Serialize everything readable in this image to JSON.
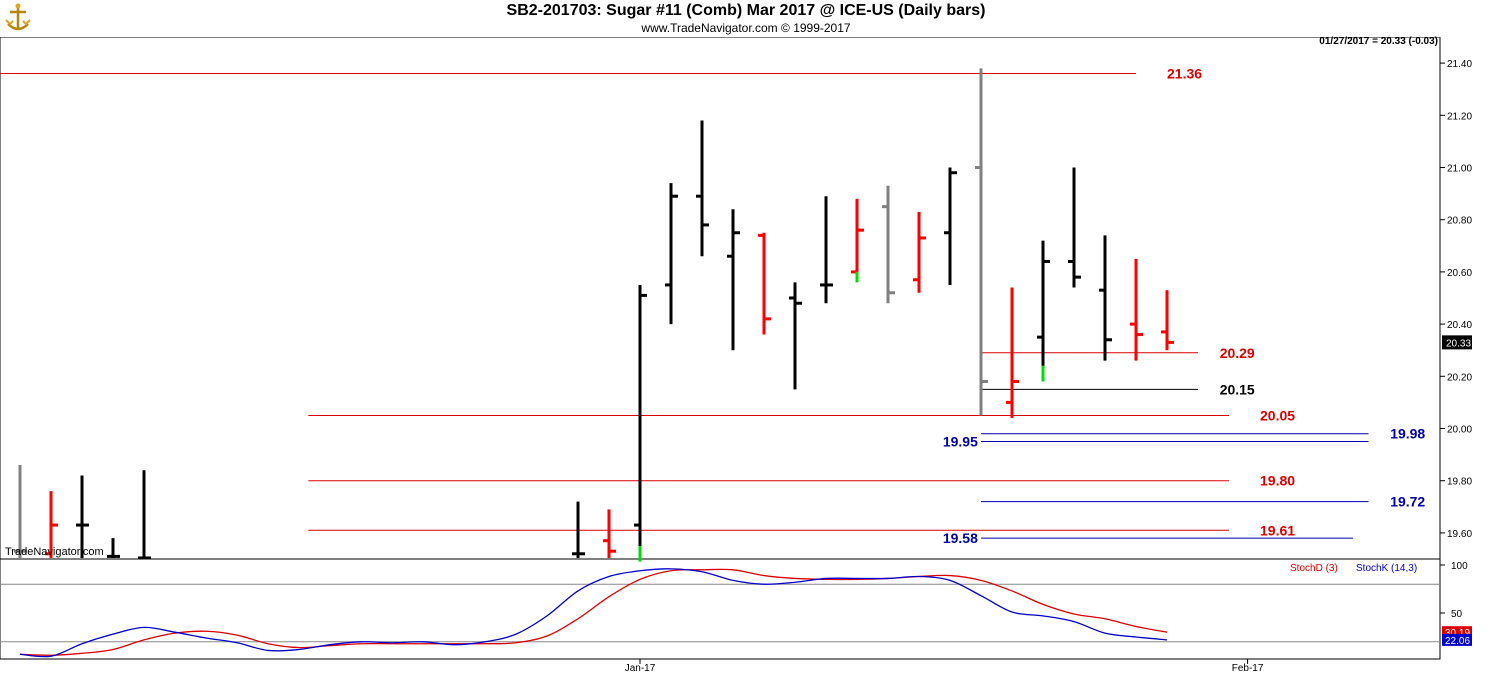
{
  "header": {
    "title": "SB2-201703:  Sugar #11 (Comb) Mar 2017 @ ICE-US  (Daily bars)",
    "subtitle": "www.TradeNavigator.com © 1999-2017"
  },
  "last_price_info": "01/27/2017 = 20.33 (-0.03)",
  "watermark": "TradeNavigator.com",
  "colors": {
    "up": "#000000",
    "down": "#ff0000",
    "neutral": "#808080",
    "signal": "#00dd00",
    "level_red": "#dd0000",
    "level_blue": "#0000aa",
    "stoch_d": "#dd0000",
    "stoch_k": "#0000cc"
  },
  "chart_data": [
    {
      "type": "bar",
      "subtype": "ohlc",
      "ylim": [
        19.5,
        21.5
      ],
      "y_ticks": [
        "21.40",
        "21.20",
        "21.00",
        "20.80",
        "20.60",
        "20.40",
        "20.20",
        "20.00",
        "19.80",
        "19.60"
      ],
      "x_ticks": [
        "Jan-17",
        "Feb-17"
      ],
      "last_price_label": "20.33",
      "bars": [
        {
          "i": 0,
          "o": 19.53,
          "h": 19.86,
          "l": 19.5,
          "c": 19.53,
          "color": "neutral"
        },
        {
          "i": 1,
          "o": 19.52,
          "h": 19.76,
          "l": 19.5,
          "c": 19.63,
          "color": "down"
        },
        {
          "i": 2,
          "o": 19.63,
          "h": 19.82,
          "l": 19.5,
          "c": 19.63,
          "color": "up"
        },
        {
          "i": 3,
          "o": 19.51,
          "h": 19.58,
          "l": 19.5,
          "c": 19.51,
          "color": "up"
        },
        {
          "i": 4,
          "o": 19.5,
          "h": 19.84,
          "l": 19.5,
          "c": 19.5,
          "color": "up"
        },
        {
          "i": 18,
          "o": 19.52,
          "h": 19.72,
          "l": 19.5,
          "c": 19.52,
          "color": "up"
        },
        {
          "i": 19,
          "o": 19.57,
          "h": 19.69,
          "l": 19.5,
          "c": 19.53,
          "color": "down"
        },
        {
          "i": 20,
          "o": 19.63,
          "h": 20.55,
          "l": 19.55,
          "c": 20.51,
          "color": "up",
          "signal_low": 19.49
        },
        {
          "i": 21,
          "o": 20.55,
          "h": 20.94,
          "l": 20.4,
          "c": 20.89,
          "color": "up"
        },
        {
          "i": 22,
          "o": 20.89,
          "h": 21.18,
          "l": 20.66,
          "c": 20.78,
          "color": "up"
        },
        {
          "i": 23,
          "o": 20.66,
          "h": 20.84,
          "l": 20.3,
          "c": 20.75,
          "color": "up"
        },
        {
          "i": 24,
          "o": 20.74,
          "h": 20.75,
          "l": 20.36,
          "c": 20.42,
          "color": "down"
        },
        {
          "i": 25,
          "o": 20.5,
          "h": 20.56,
          "l": 20.15,
          "c": 20.48,
          "color": "up"
        },
        {
          "i": 26,
          "o": 20.55,
          "h": 20.89,
          "l": 20.48,
          "c": 20.55,
          "color": "up"
        },
        {
          "i": 27,
          "o": 20.6,
          "h": 20.88,
          "l": 20.6,
          "c": 20.76,
          "color": "down",
          "signal_low": 20.56
        },
        {
          "i": 28,
          "o": 20.85,
          "h": 20.93,
          "l": 20.48,
          "c": 20.52,
          "color": "neutral"
        },
        {
          "i": 29,
          "o": 20.57,
          "h": 20.83,
          "l": 20.52,
          "c": 20.73,
          "color": "down"
        },
        {
          "i": 30,
          "o": 20.75,
          "h": 21.0,
          "l": 20.55,
          "c": 20.98,
          "color": "up"
        },
        {
          "i": 31,
          "o": 21.0,
          "h": 21.38,
          "l": 20.05,
          "c": 20.18,
          "color": "neutral"
        },
        {
          "i": 32,
          "o": 20.1,
          "h": 20.54,
          "l": 20.04,
          "c": 20.18,
          "color": "down"
        },
        {
          "i": 33,
          "o": 20.35,
          "h": 20.72,
          "l": 20.24,
          "c": 20.64,
          "color": "up",
          "signal_low": 20.18
        },
        {
          "i": 34,
          "o": 20.64,
          "h": 21.0,
          "l": 20.54,
          "c": 20.58,
          "color": "up"
        },
        {
          "i": 35,
          "o": 20.53,
          "h": 20.74,
          "l": 20.26,
          "c": 20.34,
          "color": "up"
        },
        {
          "i": 36,
          "o": 20.4,
          "h": 20.65,
          "l": 20.26,
          "c": 20.36,
          "color": "down"
        },
        {
          "i": 37,
          "o": 20.37,
          "h": 20.53,
          "l": 20.3,
          "c": 20.33,
          "color": "down"
        }
      ],
      "levels": [
        {
          "value": 21.36,
          "label": "21.36",
          "color": "level_red",
          "x_from": 0,
          "x_to": 36,
          "label_at": 37
        },
        {
          "value": 20.29,
          "label": "20.29",
          "color": "level_red",
          "x_from": 31,
          "x_to": 38,
          "label_at": 38.7
        },
        {
          "value": 20.15,
          "label": "20.15",
          "color": "up",
          "x_from": 31,
          "x_to": 38,
          "label_at": 38.7
        },
        {
          "value": 20.05,
          "label": "20.05",
          "color": "level_red",
          "x_from": 9.3,
          "x_to": 39,
          "label_at": 40
        },
        {
          "value": 19.98,
          "label": "19.98",
          "color": "level_blue",
          "x_from": 31,
          "x_to": 43.5,
          "label_at": 44.2
        },
        {
          "value": 19.95,
          "label": "19.95",
          "color": "level_blue",
          "x_from": 31,
          "x_to": 43.5,
          "label_left_at": 30.9
        },
        {
          "value": 19.8,
          "label": "19.80",
          "color": "level_red",
          "x_from": 9.3,
          "x_to": 39,
          "label_at": 40
        },
        {
          "value": 19.72,
          "label": "19.72",
          "color": "level_blue",
          "x_from": 31,
          "x_to": 43.5,
          "label_at": 44.2
        },
        {
          "value": 19.61,
          "label": "19.61",
          "color": "level_red",
          "x_from": 9.3,
          "x_to": 39,
          "label_at": 40
        },
        {
          "value": 19.58,
          "label": "19.58",
          "color": "level_blue",
          "x_from": 31,
          "x_to": 43,
          "label_left_at": 30.9
        }
      ]
    },
    {
      "type": "line",
      "ylim": [
        0,
        100
      ],
      "y_ticks": [
        "100",
        "50"
      ],
      "ref_lines": [
        80,
        20
      ],
      "legend_position": "top-right",
      "series": [
        {
          "name": "StochD (3)",
          "color": "stoch_d",
          "last_label": "30.19",
          "points": [
            [
              0,
              7
            ],
            [
              1,
              6
            ],
            [
              2,
              8
            ],
            [
              3,
              12
            ],
            [
              4,
              22
            ],
            [
              5,
              29
            ],
            [
              6,
              31
            ],
            [
              7,
              27
            ],
            [
              8,
              18
            ],
            [
              9,
              14
            ],
            [
              10,
              16
            ],
            [
              11,
              18
            ],
            [
              12,
              18
            ],
            [
              13,
              18
            ],
            [
              14,
              18
            ],
            [
              15,
              18
            ],
            [
              16,
              19
            ],
            [
              17,
              26
            ],
            [
              18,
              44
            ],
            [
              19,
              67
            ],
            [
              20,
              85
            ],
            [
              21,
              94
            ],
            [
              22,
              95
            ],
            [
              23,
              95
            ],
            [
              24,
              89
            ],
            [
              25,
              86
            ],
            [
              26,
              85
            ],
            [
              27,
              85
            ],
            [
              28,
              86
            ],
            [
              29,
              88
            ],
            [
              30,
              89
            ],
            [
              31,
              84
            ],
            [
              32,
              73
            ],
            [
              33,
              59
            ],
            [
              34,
              49
            ],
            [
              35,
              44
            ],
            [
              36,
              36
            ],
            [
              37,
              30
            ]
          ]
        },
        {
          "name": "StochK (14,3)",
          "color": "stoch_k",
          "last_label": "22.06",
          "points": [
            [
              0,
              7
            ],
            [
              1,
              5
            ],
            [
              2,
              18
            ],
            [
              3,
              28
            ],
            [
              4,
              35
            ],
            [
              5,
              30
            ],
            [
              6,
              24
            ],
            [
              7,
              19
            ],
            [
              8,
              11
            ],
            [
              9,
              12
            ],
            [
              10,
              17
            ],
            [
              11,
              20
            ],
            [
              12,
              19
            ],
            [
              13,
              20
            ],
            [
              14,
              17
            ],
            [
              15,
              20
            ],
            [
              16,
              28
            ],
            [
              17,
              47
            ],
            [
              18,
              73
            ],
            [
              19,
              88
            ],
            [
              20,
              94
            ],
            [
              21,
              96
            ],
            [
              22,
              93
            ],
            [
              23,
              84
            ],
            [
              24,
              80
            ],
            [
              25,
              82
            ],
            [
              26,
              86
            ],
            [
              27,
              86
            ],
            [
              28,
              86
            ],
            [
              29,
              88
            ],
            [
              30,
              84
            ],
            [
              31,
              68
            ],
            [
              32,
              51
            ],
            [
              33,
              47
            ],
            [
              34,
              41
            ],
            [
              35,
              29
            ],
            [
              36,
              25
            ],
            [
              37,
              22
            ]
          ]
        }
      ]
    }
  ]
}
